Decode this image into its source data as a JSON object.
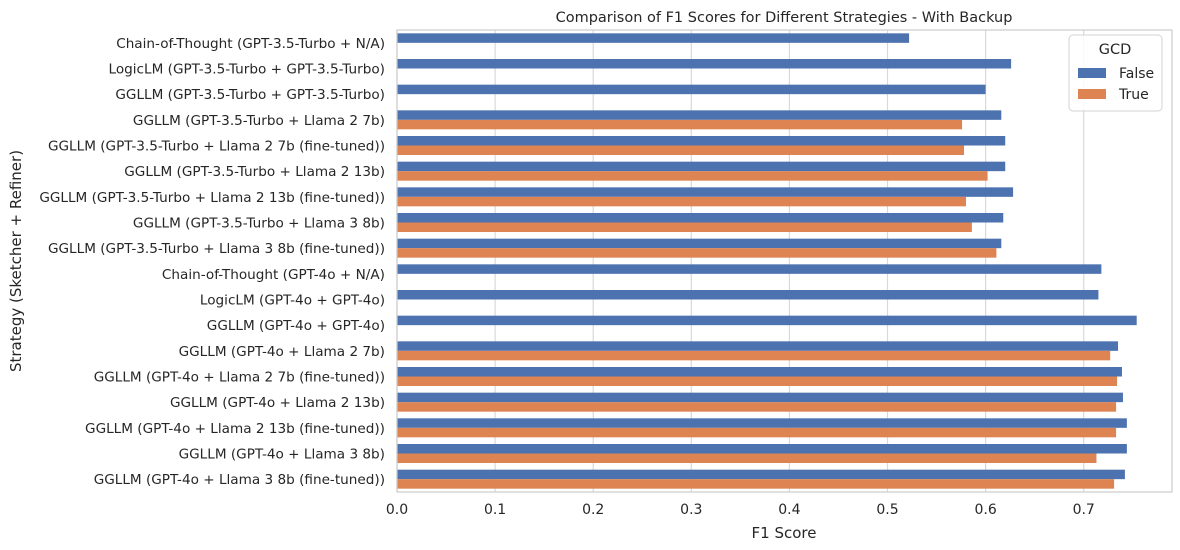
{
  "chart_data": {
    "type": "bar",
    "orientation": "horizontal",
    "title": "Comparison of F1 Scores for Different Strategies - With Backup",
    "xlabel": "F1 Score",
    "ylabel": "Strategy (Sketcher + Refiner)",
    "xlim": [
      0,
      0.79
    ],
    "xticks": [
      "0.0",
      "0.1",
      "0.2",
      "0.3",
      "0.4",
      "0.5",
      "0.6",
      "0.7"
    ],
    "grid": "vertical",
    "legend": {
      "title": "GCD",
      "placement": "top-right"
    },
    "categories": [
      "Chain-of-Thought (GPT-3.5-Turbo + N/A)",
      "LogicLM (GPT-3.5-Turbo + GPT-3.5-Turbo)",
      "GGLLM (GPT-3.5-Turbo + GPT-3.5-Turbo)",
      "GGLLM (GPT-3.5-Turbo + Llama 2 7b)",
      "GGLLM (GPT-3.5-Turbo + Llama 2 7b (fine-tuned))",
      "GGLLM (GPT-3.5-Turbo + Llama 2 13b)",
      "GGLLM (GPT-3.5-Turbo + Llama 2 13b (fine-tuned))",
      "GGLLM (GPT-3.5-Turbo + Llama 3 8b)",
      "GGLLM (GPT-3.5-Turbo + Llama 3 8b (fine-tuned))",
      "Chain-of-Thought (GPT-4o + N/A)",
      "LogicLM (GPT-4o + GPT-4o)",
      "GGLLM (GPT-4o + GPT-4o)",
      "GGLLM (GPT-4o + Llama 2 7b)",
      "GGLLM (GPT-4o + Llama 2 7b (fine-tuned))",
      "GGLLM (GPT-4o + Llama 2 13b)",
      "GGLLM (GPT-4o + Llama 2 13b (fine-tuned))",
      "GGLLM (GPT-4o + Llama 3 8b)",
      "GGLLM (GPT-4o + Llama 3 8b (fine-tuned))"
    ],
    "series": [
      {
        "name": "False",
        "color": "#4c72b0",
        "values": [
          0.522,
          0.626,
          0.6,
          0.616,
          0.62,
          0.62,
          0.628,
          0.618,
          0.616,
          0.718,
          0.715,
          0.754,
          0.735,
          0.739,
          0.74,
          0.744,
          0.744,
          0.742
        ]
      },
      {
        "name": "True",
        "color": "#dd8452",
        "values": [
          null,
          null,
          null,
          0.576,
          0.578,
          0.602,
          0.58,
          0.586,
          0.611,
          null,
          null,
          null,
          0.727,
          0.734,
          0.733,
          0.733,
          0.713,
          0.731
        ]
      }
    ]
  }
}
